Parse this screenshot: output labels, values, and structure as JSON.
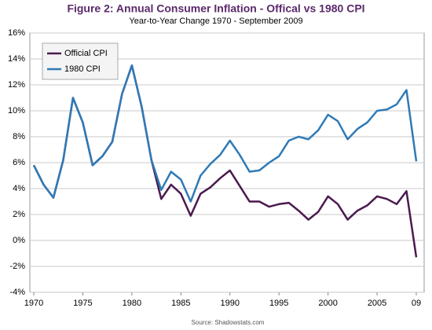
{
  "chart_data": {
    "type": "line",
    "title": "Figure 2: Annual Consumer Inflation - Offical vs 1980 CPI",
    "subtitle": "Year-to-Year Change 1970 - September 2009",
    "source": "Source: Shadowstats.com",
    "x": [
      1970,
      1971,
      1972,
      1973,
      1974,
      1975,
      1976,
      1977,
      1978,
      1979,
      1980,
      1981,
      1982,
      1983,
      1984,
      1985,
      1986,
      1987,
      1988,
      1989,
      1990,
      1991,
      1992,
      1993,
      1994,
      1995,
      1996,
      1997,
      1998,
      1999,
      2000,
      2001,
      2002,
      2003,
      2004,
      2005,
      2006,
      2007,
      2008,
      2009
    ],
    "series": [
      {
        "name": "Official CPI",
        "color": "#4b1a4e",
        "values": [
          5.8,
          4.3,
          3.3,
          6.2,
          11.0,
          9.1,
          5.8,
          6.5,
          7.6,
          11.3,
          13.5,
          10.3,
          6.2,
          3.2,
          4.3,
          3.6,
          1.9,
          3.6,
          4.1,
          4.8,
          5.4,
          4.2,
          3.0,
          3.0,
          2.6,
          2.8,
          2.9,
          2.3,
          1.6,
          2.2,
          3.4,
          2.8,
          1.6,
          2.3,
          2.7,
          3.4,
          3.2,
          2.8,
          3.8,
          -1.3
        ]
      },
      {
        "name": "1980 CPI",
        "color": "#2f7ab6",
        "values": [
          5.8,
          4.3,
          3.3,
          6.2,
          11.0,
          9.1,
          5.8,
          6.5,
          7.6,
          11.3,
          13.5,
          10.3,
          6.2,
          3.9,
          5.3,
          4.7,
          3.0,
          5.0,
          5.9,
          6.6,
          7.7,
          6.6,
          5.3,
          5.4,
          6.0,
          6.5,
          7.7,
          8.0,
          7.8,
          8.5,
          9.7,
          9.2,
          7.8,
          8.6,
          9.1,
          10.0,
          10.1,
          10.5,
          11.6,
          6.1
        ]
      }
    ],
    "xlim": [
      1969.6,
      2009.8
    ],
    "xticks": [
      1970,
      1975,
      1980,
      1985,
      1990,
      1995,
      2000,
      2005,
      {
        "value": 2009,
        "label": "09"
      }
    ],
    "ylim": [
      -4,
      16
    ],
    "yticks": [
      {
        "value": -4,
        "label": "-4%"
      },
      {
        "value": -2,
        "label": "-2%"
      },
      {
        "value": 0,
        "label": "0%"
      },
      {
        "value": 2,
        "label": "2%"
      },
      {
        "value": 4,
        "label": "4%"
      },
      {
        "value": 6,
        "label": "6%"
      },
      {
        "value": 8,
        "label": "8%"
      },
      {
        "value": 10,
        "label": "10%"
      },
      {
        "value": 12,
        "label": "12%"
      },
      {
        "value": 14,
        "label": "14%"
      },
      {
        "value": 16,
        "label": "16%"
      }
    ],
    "grid": true,
    "legend": "upper left"
  }
}
